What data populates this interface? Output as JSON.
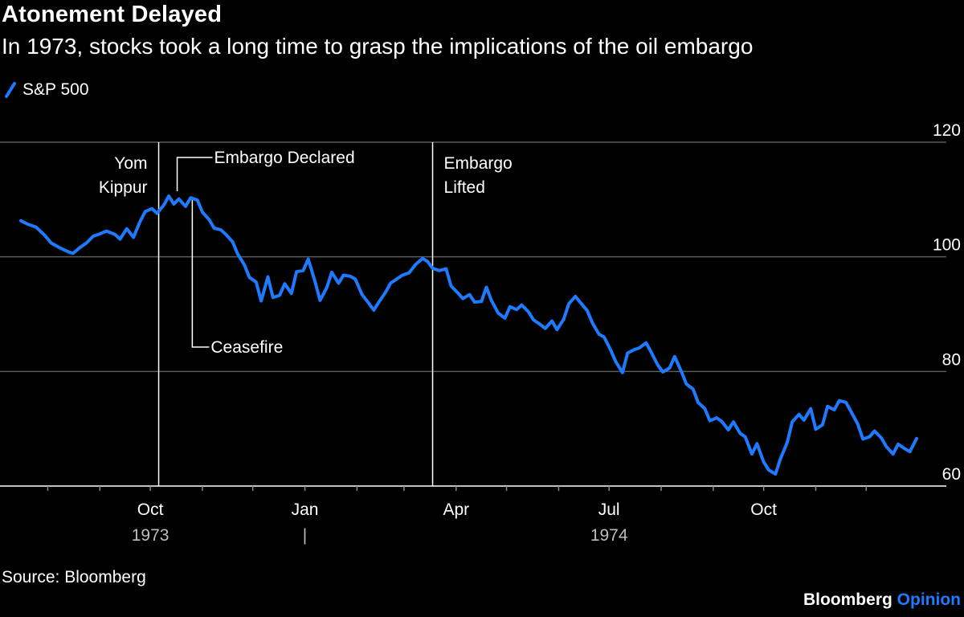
{
  "chart_data": {
    "type": "line",
    "title": "Atonement Delayed",
    "subtitle": "In 1973, stocks took a long time to grasp the implications of the oil embargo",
    "source": "Source: Bloomberg",
    "brand": {
      "name": "Bloomberg",
      "suffix": "Opinion"
    },
    "colors": {
      "line": "#1e7bff",
      "grid": "#5a5a5a",
      "annotation": "#ffffff",
      "brand_accent": "#1e7bff"
    },
    "grid": true,
    "legend_position": "top-left",
    "xlim": [
      "1973-07-16",
      "1974-12-31"
    ],
    "ylim": [
      60,
      120
    ],
    "y_ticks": [
      60,
      80,
      100,
      120
    ],
    "x_ticks": [
      {
        "date": "1973-10-01",
        "label": "Oct"
      },
      {
        "date": "1974-01-01",
        "label": "Jan"
      },
      {
        "date": "1974-04-01",
        "label": "Apr"
      },
      {
        "date": "1974-07-01",
        "label": "Jul"
      },
      {
        "date": "1974-10-01",
        "label": "Oct"
      }
    ],
    "x_minor_ticks": [
      "1973-08-01",
      "1973-09-01",
      "1973-10-01",
      "1973-11-01",
      "1973-12-01",
      "1974-01-01",
      "1974-02-01",
      "1974-03-01",
      "1974-04-01",
      "1974-05-01",
      "1974-06-01",
      "1974-07-01",
      "1974-08-01",
      "1974-09-01",
      "1974-10-01",
      "1974-11-01",
      "1974-12-01"
    ],
    "year_labels": [
      {
        "date": "1973-10-01",
        "label": "1973"
      },
      {
        "date": "1974-01-01",
        "label": "|"
      },
      {
        "date": "1974-07-01",
        "label": "1974"
      }
    ],
    "events": [
      {
        "date": "1973-10-06",
        "label_lines": [
          "Yom",
          "Kippur"
        ],
        "style": "vline"
      },
      {
        "date": "1973-10-17",
        "label_lines": [
          "Embargo Declared"
        ],
        "style": "leader-up"
      },
      {
        "date": "1973-10-26",
        "label_lines": [
          "Ceasefire"
        ],
        "style": "leader-down"
      },
      {
        "date": "1974-03-18",
        "label_lines": [
          "Embargo",
          "Lifted"
        ],
        "style": "vline"
      }
    ],
    "series": [
      {
        "name": "S&P 500",
        "points": [
          [
            "1973-07-16",
            106.3
          ],
          [
            "1973-07-20",
            105.7
          ],
          [
            "1973-07-25",
            105.2
          ],
          [
            "1973-07-30",
            103.8
          ],
          [
            "1973-08-03",
            102.4
          ],
          [
            "1973-08-08",
            101.6
          ],
          [
            "1973-08-13",
            100.9
          ],
          [
            "1973-08-16",
            100.6
          ],
          [
            "1973-08-20",
            101.6
          ],
          [
            "1973-08-24",
            102.4
          ],
          [
            "1973-08-28",
            103.6
          ],
          [
            "1973-09-01",
            104.0
          ],
          [
            "1973-09-05",
            104.5
          ],
          [
            "1973-09-10",
            103.9
          ],
          [
            "1973-09-13",
            103.1
          ],
          [
            "1973-09-17",
            104.9
          ],
          [
            "1973-09-21",
            103.4
          ],
          [
            "1973-09-25",
            106.2
          ],
          [
            "1973-09-28",
            107.9
          ],
          [
            "1973-10-02",
            108.4
          ],
          [
            "1973-10-05",
            107.6
          ],
          [
            "1973-10-09",
            109.0
          ],
          [
            "1973-10-12",
            110.6
          ],
          [
            "1973-10-15",
            109.2
          ],
          [
            "1973-10-18",
            110.1
          ],
          [
            "1973-10-22",
            108.8
          ],
          [
            "1973-10-25",
            110.3
          ],
          [
            "1973-10-29",
            109.9
          ],
          [
            "1973-11-01",
            107.8
          ],
          [
            "1973-11-05",
            106.5
          ],
          [
            "1973-11-08",
            105.0
          ],
          [
            "1973-11-12",
            104.7
          ],
          [
            "1973-11-15",
            103.9
          ],
          [
            "1973-11-19",
            102.6
          ],
          [
            "1973-11-22",
            100.5
          ],
          [
            "1973-11-26",
            98.6
          ],
          [
            "1973-11-29",
            96.4
          ],
          [
            "1973-12-03",
            95.6
          ],
          [
            "1973-12-06",
            92.3
          ],
          [
            "1973-12-10",
            96.5
          ],
          [
            "1973-12-13",
            92.9
          ],
          [
            "1973-12-17",
            93.3
          ],
          [
            "1973-12-20",
            95.3
          ],
          [
            "1973-12-24",
            93.6
          ],
          [
            "1973-12-27",
            97.4
          ],
          [
            "1973-12-31",
            97.6
          ],
          [
            "1974-01-03",
            99.6
          ],
          [
            "1974-01-07",
            95.7
          ],
          [
            "1974-01-10",
            92.4
          ],
          [
            "1974-01-14",
            94.6
          ],
          [
            "1974-01-17",
            97.3
          ],
          [
            "1974-01-21",
            95.4
          ],
          [
            "1974-01-24",
            96.8
          ],
          [
            "1974-01-28",
            96.6
          ],
          [
            "1974-01-31",
            96.1
          ],
          [
            "1974-02-04",
            93.4
          ],
          [
            "1974-02-07",
            92.3
          ],
          [
            "1974-02-11",
            90.7
          ],
          [
            "1974-02-14",
            92.1
          ],
          [
            "1974-02-18",
            93.8
          ],
          [
            "1974-02-21",
            95.4
          ],
          [
            "1974-02-25",
            96.2
          ],
          [
            "1974-02-28",
            96.8
          ],
          [
            "1974-03-04",
            97.2
          ],
          [
            "1974-03-08",
            98.7
          ],
          [
            "1974-03-12",
            99.7
          ],
          [
            "1974-03-15",
            99.2
          ],
          [
            "1974-03-18",
            98.0
          ],
          [
            "1974-03-22",
            97.6
          ],
          [
            "1974-03-26",
            97.9
          ],
          [
            "1974-03-29",
            94.9
          ],
          [
            "1974-04-02",
            93.7
          ],
          [
            "1974-04-05",
            92.7
          ],
          [
            "1974-04-09",
            93.4
          ],
          [
            "1974-04-12",
            92.1
          ],
          [
            "1974-04-16",
            92.2
          ],
          [
            "1974-04-19",
            94.7
          ],
          [
            "1974-04-22",
            92.4
          ],
          [
            "1974-04-26",
            90.2
          ],
          [
            "1974-04-30",
            89.3
          ],
          [
            "1974-05-03",
            91.3
          ],
          [
            "1974-05-07",
            90.8
          ],
          [
            "1974-05-10",
            91.6
          ],
          [
            "1974-05-14",
            90.4
          ],
          [
            "1974-05-17",
            89.0
          ],
          [
            "1974-05-21",
            88.2
          ],
          [
            "1974-05-24",
            87.5
          ],
          [
            "1974-05-28",
            88.8
          ],
          [
            "1974-05-31",
            87.3
          ],
          [
            "1974-06-04",
            89.1
          ],
          [
            "1974-06-07",
            91.8
          ],
          [
            "1974-06-11",
            93.1
          ],
          [
            "1974-06-14",
            92.0
          ],
          [
            "1974-06-18",
            90.6
          ],
          [
            "1974-06-21",
            88.5
          ],
          [
            "1974-06-25",
            86.5
          ],
          [
            "1974-06-28",
            86.0
          ],
          [
            "1974-07-02",
            83.7
          ],
          [
            "1974-07-05",
            81.7
          ],
          [
            "1974-07-09",
            79.8
          ],
          [
            "1974-07-12",
            83.2
          ],
          [
            "1974-07-16",
            83.8
          ],
          [
            "1974-07-19",
            84.1
          ],
          [
            "1974-07-23",
            85.0
          ],
          [
            "1974-07-26",
            83.4
          ],
          [
            "1974-07-30",
            81.1
          ],
          [
            "1974-08-02",
            79.9
          ],
          [
            "1974-08-06",
            80.6
          ],
          [
            "1974-08-09",
            82.6
          ],
          [
            "1974-08-13",
            80.0
          ],
          [
            "1974-08-16",
            77.8
          ],
          [
            "1974-08-20",
            76.9
          ],
          [
            "1974-08-23",
            74.6
          ],
          [
            "1974-08-27",
            73.5
          ],
          [
            "1974-08-30",
            71.4
          ],
          [
            "1974-09-03",
            71.9
          ],
          [
            "1974-09-06",
            71.3
          ],
          [
            "1974-09-10",
            69.8
          ],
          [
            "1974-09-13",
            71.2
          ],
          [
            "1974-09-17",
            69.2
          ],
          [
            "1974-09-20",
            68.6
          ],
          [
            "1974-09-24",
            65.6
          ],
          [
            "1974-09-27",
            67.4
          ],
          [
            "1974-10-01",
            64.2
          ],
          [
            "1974-10-04",
            62.8
          ],
          [
            "1974-10-08",
            62.1
          ],
          [
            "1974-10-11",
            64.8
          ],
          [
            "1974-10-15",
            67.6
          ],
          [
            "1974-10-18",
            71.2
          ],
          [
            "1974-10-22",
            72.5
          ],
          [
            "1974-10-25",
            71.5
          ],
          [
            "1974-10-29",
            73.5
          ],
          [
            "1974-11-01",
            69.9
          ],
          [
            "1974-11-05",
            70.7
          ],
          [
            "1974-11-08",
            73.9
          ],
          [
            "1974-11-12",
            73.3
          ],
          [
            "1974-11-15",
            74.9
          ],
          [
            "1974-11-19",
            74.6
          ],
          [
            "1974-11-22",
            73.0
          ],
          [
            "1974-11-26",
            70.8
          ],
          [
            "1974-11-29",
            68.2
          ],
          [
            "1974-12-03",
            68.6
          ],
          [
            "1974-12-06",
            69.6
          ],
          [
            "1974-12-10",
            68.4
          ],
          [
            "1974-12-13",
            66.9
          ],
          [
            "1974-12-17",
            65.6
          ],
          [
            "1974-12-20",
            67.3
          ],
          [
            "1974-12-24",
            66.5
          ],
          [
            "1974-12-27",
            66.0
          ],
          [
            "1974-12-31",
            68.3
          ]
        ]
      }
    ]
  }
}
